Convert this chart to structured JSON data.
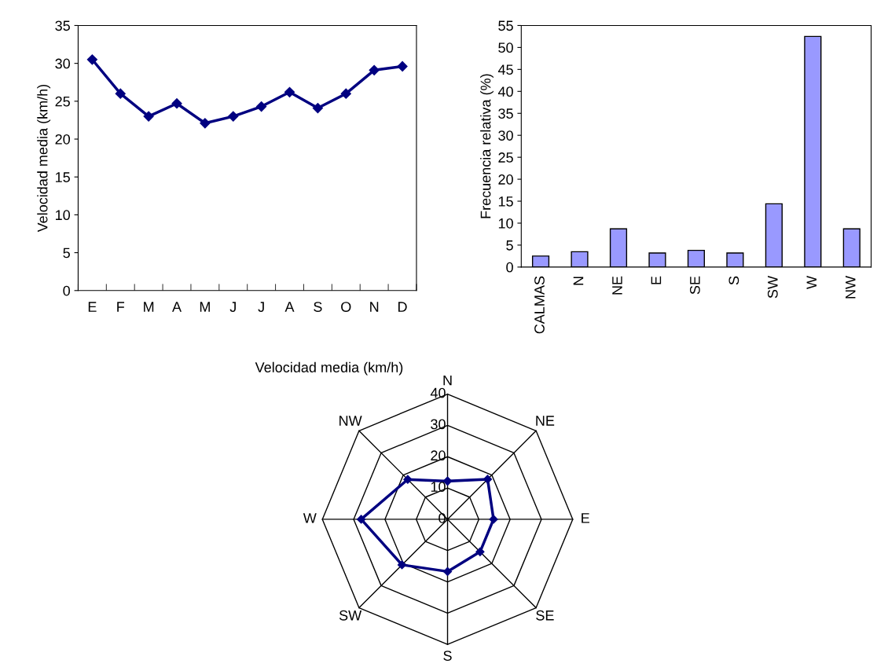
{
  "chart_data": [
    {
      "type": "line",
      "ylabel": "Velocidad media (km/h)",
      "categories": [
        "E",
        "F",
        "M",
        "A",
        "M",
        "J",
        "J",
        "A",
        "S",
        "O",
        "N",
        "D"
      ],
      "series": [
        {
          "color": "#000080",
          "values": [
            30.5,
            26,
            23,
            24.7,
            22.1,
            23,
            24.3,
            26.2,
            24.1,
            26,
            29.1,
            29.6
          ]
        }
      ],
      "ylim": [
        0,
        35
      ],
      "yticks": [
        0,
        5,
        10,
        15,
        20,
        25,
        30,
        35
      ],
      "marker": "diamond",
      "line_style": "solid",
      "grid": false
    },
    {
      "type": "bar",
      "ylabel": "Frecuencia relativa (%)",
      "categories": [
        "CALMAS",
        "N",
        "NE",
        "E",
        "SE",
        "S",
        "SW",
        "W",
        "NW"
      ],
      "series": [
        {
          "color": "#9999ff",
          "values": [
            2.5,
            3.5,
            8.7,
            3.2,
            3.8,
            3.2,
            14.4,
            52.5,
            8.7
          ]
        }
      ],
      "ylim": [
        0,
        55
      ],
      "yticks": [
        0,
        5,
        10,
        15,
        20,
        25,
        30,
        35,
        40,
        45,
        50,
        55
      ],
      "grid": false
    },
    {
      "type": "radar",
      "title": "Velocidad media (km/h)",
      "categories": [
        "N",
        "NE",
        "E",
        "SE",
        "S",
        "SW",
        "W",
        "NW"
      ],
      "series": [
        {
          "color": "#000080",
          "values": [
            12.2,
            18.1,
            14.7,
            14.7,
            16.7,
            20.6,
            27.6,
            18.0
          ]
        }
      ],
      "ylim": [
        0,
        40
      ],
      "yticks": [
        0,
        10,
        20,
        30,
        40
      ],
      "marker": "diamond",
      "line_style": "solid",
      "grid": true
    }
  ]
}
